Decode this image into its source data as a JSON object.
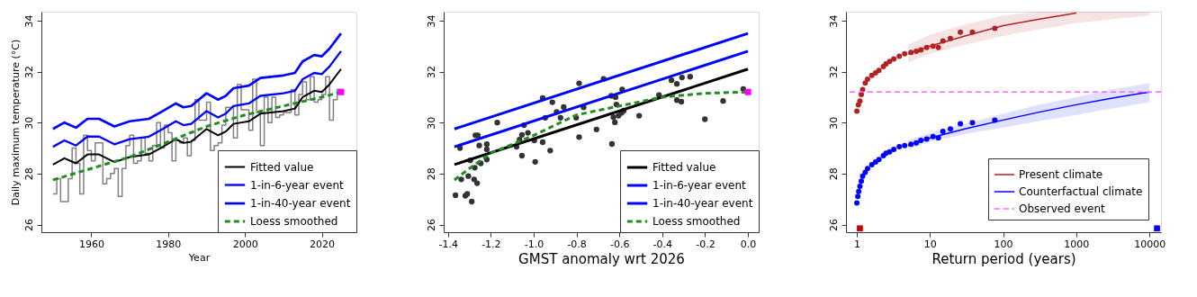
{
  "chart_data": [
    {
      "type": "line",
      "xlabel": "Year",
      "ylabel": "Daily maximum temperature (°C)",
      "xlim": [
        1947,
        2029
      ],
      "xticks": [
        1960,
        1980,
        2000,
        2020
      ],
      "ylim": [
        25.7,
        34.35
      ],
      "yticks": [
        26,
        28,
        30,
        32,
        34
      ],
      "grid": false,
      "legend": "bottom right",
      "x": [
        1950,
        1951,
        1952,
        1953,
        1954,
        1955,
        1956,
        1957,
        1958,
        1959,
        1960,
        1961,
        1962,
        1963,
        1964,
        1965,
        1966,
        1967,
        1968,
        1969,
        1970,
        1971,
        1972,
        1973,
        1974,
        1975,
        1976,
        1977,
        1978,
        1979,
        1980,
        1981,
        1982,
        1983,
        1984,
        1985,
        1986,
        1987,
        1988,
        1989,
        1990,
        1991,
        1992,
        1993,
        1994,
        1995,
        1996,
        1997,
        1998,
        1999,
        2000,
        2001,
        2002,
        2003,
        2004,
        2005,
        2006,
        2007,
        2008,
        2009,
        2010,
        2011,
        2012,
        2013,
        2014,
        2015,
        2016,
        2017,
        2018,
        2019,
        2020,
        2021,
        2022,
        2023,
        2024,
        2025
      ],
      "series": [
        {
          "type": "step",
          "color": "#808080",
          "values": [
            27.2,
            27.8,
            26.9,
            26.9,
            27.8,
            29.0,
            28.4,
            27.2,
            29.5,
            28.9,
            28.5,
            29.2,
            29.2,
            27.6,
            27.8,
            28.0,
            28.2,
            27.1,
            28.2,
            29.1,
            29.5,
            28.4,
            28.5,
            29.4,
            28.8,
            28.5,
            29.1,
            30.0,
            29.0,
            29.9,
            29.6,
            28.5,
            29.3,
            29.2,
            29.4,
            28.7,
            29.3,
            30.9,
            30.1,
            30.1,
            30.8,
            28.9,
            29.1,
            29.2,
            29.9,
            30.6,
            30.6,
            29.4,
            31.5,
            30.5,
            30.5,
            29.7,
            31.7,
            30.4,
            29.1,
            31.0,
            30.0,
            31.0,
            30.2,
            30.3,
            30.4,
            30.4,
            31.3,
            30.3,
            31.1,
            31.6,
            30.9,
            31.8,
            30.8,
            30.9,
            31.1,
            31.8,
            30.1,
            30.9,
            31.3,
            31.2
          ]
        },
        {
          "name": "Fitted value",
          "color": "#000000",
          "x": [
            1950,
            1953,
            1956,
            1959,
            1962,
            1966,
            1970,
            1975,
            1978,
            1982,
            1984,
            1986,
            1990,
            1993,
            1995,
            1997,
            2001,
            2004,
            2010,
            2013,
            2015,
            2018,
            2020,
            2022,
            2025
          ],
          "values": [
            28.35,
            28.6,
            28.4,
            28.75,
            28.75,
            28.45,
            28.65,
            28.75,
            29.0,
            29.35,
            29.2,
            29.25,
            29.75,
            29.5,
            29.65,
            29.95,
            30.05,
            30.35,
            30.45,
            30.55,
            31.0,
            31.25,
            31.2,
            31.5,
            32.1
          ]
        },
        {
          "name": "1-in-6-year event",
          "color": "#0000ff",
          "x": [
            1950,
            1953,
            1956,
            1959,
            1962,
            1966,
            1970,
            1975,
            1978,
            1982,
            1984,
            1986,
            1990,
            1993,
            1995,
            1997,
            2001,
            2004,
            2010,
            2013,
            2015,
            2018,
            2020,
            2022,
            2025
          ],
          "values": [
            29.05,
            29.3,
            29.1,
            29.45,
            29.45,
            29.15,
            29.35,
            29.45,
            29.7,
            30.05,
            29.9,
            29.95,
            30.45,
            30.2,
            30.35,
            30.65,
            30.75,
            31.05,
            31.15,
            31.25,
            31.7,
            31.95,
            31.9,
            32.2,
            32.8
          ]
        },
        {
          "name": "1-in-40-year event",
          "color": "#0000ff",
          "x": [
            1950,
            1953,
            1956,
            1959,
            1962,
            1966,
            1970,
            1975,
            1978,
            1982,
            1984,
            1986,
            1990,
            1993,
            1995,
            1997,
            2001,
            2004,
            2010,
            2013,
            2015,
            2018,
            2020,
            2022,
            2025
          ],
          "values": [
            29.75,
            30.0,
            29.8,
            30.15,
            30.15,
            29.85,
            30.05,
            30.15,
            30.4,
            30.75,
            30.6,
            30.65,
            31.15,
            30.9,
            31.05,
            31.35,
            31.45,
            31.75,
            31.85,
            31.95,
            32.4,
            32.65,
            32.6,
            32.9,
            33.5
          ]
        },
        {
          "name": "Loess smoothed",
          "color": "#228b22",
          "line_style": "dashed",
          "x": [
            1950,
            1960,
            1970,
            1980,
            1990,
            2000,
            2010,
            2020,
            2025
          ],
          "values": [
            27.75,
            28.2,
            28.65,
            29.25,
            29.85,
            30.3,
            30.65,
            31.0,
            31.2
          ]
        },
        {
          "type": "scatter",
          "marker": "square",
          "color": "#ff00ff",
          "x": [
            2025
          ],
          "values": [
            31.2
          ]
        }
      ]
    },
    {
      "type": "line",
      "xlabel": "GMST anomaly wrt 2026",
      "xlim": [
        -1.42,
        0.05
      ],
      "xticks": [
        {
          "value": -1.4,
          "label": "-1.4"
        },
        {
          "value": -1.2,
          "label": "-1.2"
        },
        {
          "value": -1.0,
          "label": "-1.0"
        },
        {
          "value": -0.8,
          "label": "-0.8"
        },
        {
          "value": -0.6,
          "label": "-0.6"
        },
        {
          "value": -0.4,
          "label": "-0.4"
        },
        {
          "value": -0.2,
          "label": "-0.2"
        },
        {
          "value": 0.0,
          "label": "0.0"
        }
      ],
      "ylim": [
        25.7,
        34.35
      ],
      "yticks": [
        26,
        28,
        30,
        32,
        34
      ],
      "grid": false,
      "legend": "bottom right",
      "series": [
        {
          "type": "scatter",
          "marker": "circle",
          "color": "#333333",
          "x": [
            -1.365,
            -1.344,
            -1.338,
            -1.319,
            -1.31,
            -1.305,
            -1.289,
            -1.296,
            -1.278,
            -1.275,
            -1.264,
            -1.272,
            -1.261,
            -1.254,
            -1.247,
            -1.219,
            -1.219,
            -1.219,
            -1.17,
            -1.08,
            -1.066,
            -1.055,
            -1.045,
            -1.027,
            -1.055,
            -0.997,
            -0.993,
            -0.958,
            -0.958,
            -0.946,
            -0.923,
            -0.913,
            -0.893,
            -0.875,
            -0.86,
            -0.802,
            -0.788,
            -0.788,
            -0.767,
            -0.707,
            -0.674,
            -0.638,
            -0.635,
            -0.628,
            -0.621,
            -0.618,
            -0.614,
            -0.604,
            -0.59,
            -0.587,
            -0.58,
            -0.508,
            -0.415,
            -0.357,
            -0.332,
            -0.332,
            -0.308,
            -0.311,
            -0.27,
            -0.201,
            -0.116,
            -0.022
          ],
          "values": [
            27.15,
            29.0,
            27.77,
            27.13,
            27.2,
            27.9,
            26.9,
            28.52,
            27.77,
            28.23,
            27.62,
            29.5,
            29.5,
            29.1,
            28.4,
            29.15,
            28.95,
            28.55,
            30.0,
            29.05,
            29.33,
            28.7,
            29.9,
            29.6,
            29.52,
            29.3,
            28.46,
            30.96,
            29.23,
            30.19,
            28.9,
            30.8,
            30.42,
            30.19,
            30.61,
            30.19,
            31.54,
            29.43,
            30.6,
            29.73,
            31.71,
            31.05,
            29.16,
            30.21,
            30.01,
            31.0,
            30.71,
            30.27,
            30.38,
            31.3,
            30.47,
            30.27,
            31.08,
            31.66,
            31.52,
            30.88,
            31.77,
            30.82,
            31.8,
            30.13,
            30.85,
            31.32
          ]
        },
        {
          "name": "Fitted value",
          "color": "#000000",
          "x": [
            -1.37,
            0.0
          ],
          "values": [
            28.35,
            32.1
          ]
        },
        {
          "name": "1-in-6-year event",
          "color": "#0000ff",
          "x": [
            -1.37,
            0.0
          ],
          "values": [
            29.05,
            32.8
          ]
        },
        {
          "name": "1-in-40-year event",
          "color": "#0000ff",
          "x": [
            -1.37,
            0.0
          ],
          "values": [
            29.75,
            33.5
          ]
        },
        {
          "name": "Loess smoothed",
          "color": "#228b22",
          "line_style": "dashed",
          "x": [
            -1.37,
            -1.3,
            -1.2,
            -1.0,
            -0.8,
            -0.6,
            -0.4,
            -0.2,
            0.0
          ],
          "values": [
            27.75,
            28.2,
            28.8,
            29.5,
            30.3,
            30.65,
            31.0,
            31.15,
            31.2
          ]
        },
        {
          "type": "scatter",
          "marker": "square",
          "color": "#ff00ff",
          "x": [
            0.0
          ],
          "values": [
            31.2
          ]
        }
      ]
    },
    {
      "type": "line",
      "xlabel": "Return period (years)",
      "log": "x",
      "xlim": [
        0.71,
        14400
      ],
      "xticks": [
        1,
        10,
        100,
        1000,
        10000
      ],
      "ylim": [
        25.7,
        34.35
      ],
      "yticks": [
        26,
        28,
        30,
        32,
        34
      ],
      "grid": false,
      "legend": "bottom right",
      "ref_lines": [
        {
          "axis": "y",
          "value": 31.2,
          "label": "Observed event",
          "color": "#ff66ff",
          "line_style": "dashed"
        }
      ],
      "series": [
        {
          "type": "scatter",
          "marker": "circle",
          "color": "#b22222",
          "x": [
            1.0,
            1.05,
            1.1,
            1.15,
            1.2,
            1.3,
            1.4,
            1.6,
            1.8,
            2.0,
            2.3,
            2.5,
            2.8,
            3.2,
            3.8,
            4.5,
            5.5,
            6.5,
            7.5,
            9,
            11,
            13,
            15,
            19,
            26,
            38,
            77
          ],
          "values": [
            30.45,
            30.7,
            30.85,
            31.1,
            31.3,
            31.55,
            31.7,
            31.85,
            31.95,
            32.05,
            32.2,
            32.3,
            32.4,
            32.5,
            32.6,
            32.7,
            32.75,
            32.8,
            32.85,
            32.95,
            33.0,
            32.95,
            33.2,
            33.3,
            33.55,
            33.55,
            33.7
          ]
        },
        {
          "type": "scatter",
          "marker": "circle",
          "color": "#0000ff",
          "x": [
            1.0,
            1.03,
            1.06,
            1.1,
            1.15,
            1.2,
            1.3,
            1.4,
            1.6,
            1.8,
            2.0,
            2.3,
            2.5,
            2.8,
            3.2,
            3.8,
            4.5,
            5.5,
            6.5,
            7.5,
            9,
            11,
            13,
            15,
            19,
            26,
            38,
            77
          ],
          "values": [
            26.85,
            27.1,
            27.3,
            27.5,
            27.7,
            27.9,
            28.05,
            28.2,
            28.35,
            28.45,
            28.55,
            28.7,
            28.8,
            28.85,
            28.95,
            29.05,
            29.1,
            29.15,
            29.2,
            29.3,
            29.35,
            29.45,
            29.4,
            29.65,
            29.75,
            29.95,
            30.0,
            30.1
          ]
        },
        {
          "name": "Present climate",
          "color": "#b22222",
          "x": [
            5,
            10,
            30,
            100,
            300,
            1000,
            3000,
            10000
          ],
          "values": [
            32.7,
            33.0,
            33.4,
            33.8,
            34.05,
            34.3,
            null,
            null
          ],
          "lower": [
            32.35,
            32.7,
            33.05,
            33.4,
            33.65,
            33.9,
            34.05,
            34.2
          ],
          "upper": [
            33.05,
            33.45,
            33.85,
            34.2,
            34.35,
            34.35,
            34.35,
            34.35
          ]
        },
        {
          "name": "Counterfactual climate",
          "color": "#0000ff",
          "x": [
            5,
            10,
            30,
            100,
            300,
            1000,
            3000,
            10000
          ],
          "values": [
            29.1,
            29.4,
            29.75,
            30.1,
            30.4,
            30.7,
            30.95,
            31.2
          ],
          "lower": [
            28.95,
            29.25,
            29.55,
            29.8,
            30.05,
            30.3,
            30.55,
            30.8
          ],
          "upper": [
            29.3,
            29.6,
            29.95,
            30.35,
            30.7,
            31.0,
            31.3,
            31.55
          ]
        },
        {
          "type": "scatter",
          "marker": "square",
          "color": "#cc0000",
          "x": [
            1.1
          ],
          "values": [
            25.85
          ]
        },
        {
          "type": "scatter",
          "marker": "square",
          "color": "#0000ff",
          "x": [
            12700
          ],
          "values": [
            25.85
          ]
        }
      ]
    }
  ]
}
